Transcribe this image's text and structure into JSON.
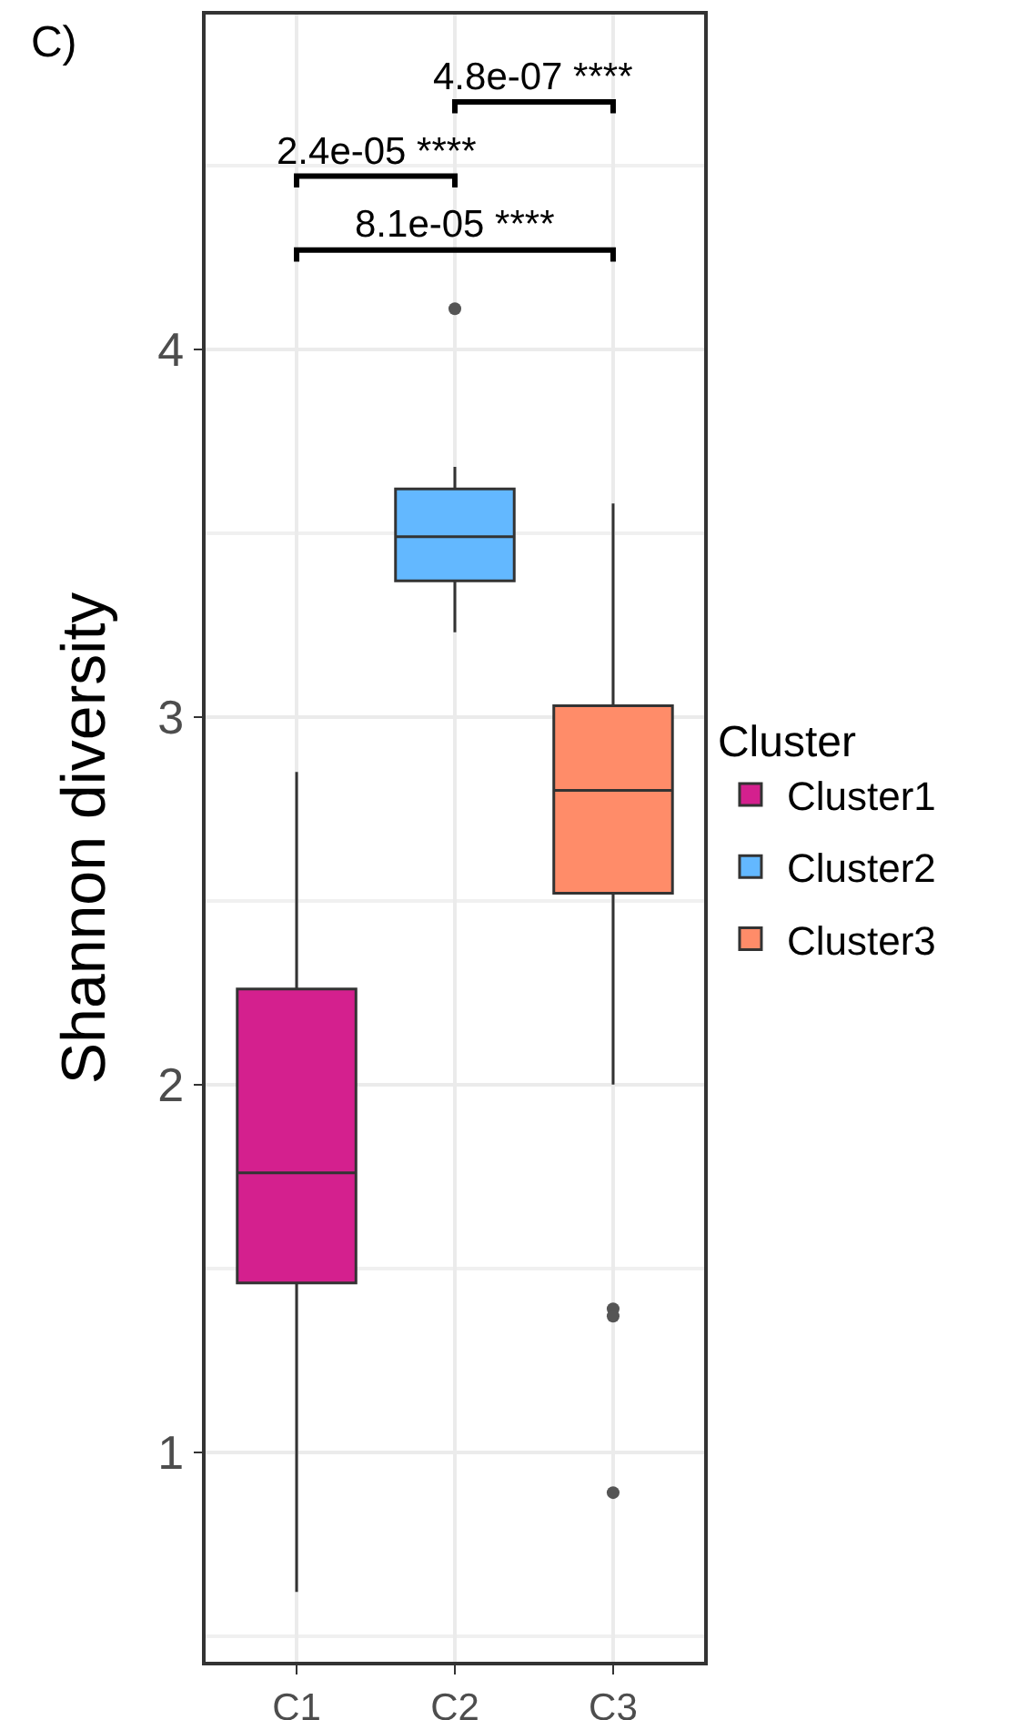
{
  "chart_data": {
    "type": "box",
    "title": "C)",
    "ylabel": "Shannon diversity",
    "legend_title": "Cluster",
    "legend": "right",
    "grid": true,
    "categories": [
      "C1",
      "C2",
      "C3"
    ],
    "ylim": [
      0.43,
      4.91
    ],
    "yticks": [
      1,
      2,
      3,
      4
    ],
    "series": [
      {
        "name": "Cluster1",
        "color": "#d4208e",
        "boxes": [
          {
            "low": 0.62,
            "q1": 1.46,
            "median": 1.76,
            "q3": 2.26,
            "high": 2.85
          },
          null,
          null
        ]
      },
      {
        "name": "Cluster2",
        "color": "#63b8ff",
        "boxes": [
          null,
          {
            "low": 3.23,
            "q1": 3.37,
            "median": 3.49,
            "q3": 3.62,
            "high": 3.68,
            "outliers": [
              4.11
            ]
          },
          null
        ]
      },
      {
        "name": "Cluster3",
        "color": "#ff8c69",
        "boxes": [
          null,
          null,
          {
            "low": 2.0,
            "q1": 2.52,
            "median": 2.8,
            "q3": 3.03,
            "high": 3.58,
            "outliers": [
              1.39,
              1.37,
              0.89
            ]
          }
        ]
      }
    ],
    "annotations": [
      "4.8e-07 ****",
      "2.4e-05 ****",
      "8.1e-05 ****"
    ]
  }
}
